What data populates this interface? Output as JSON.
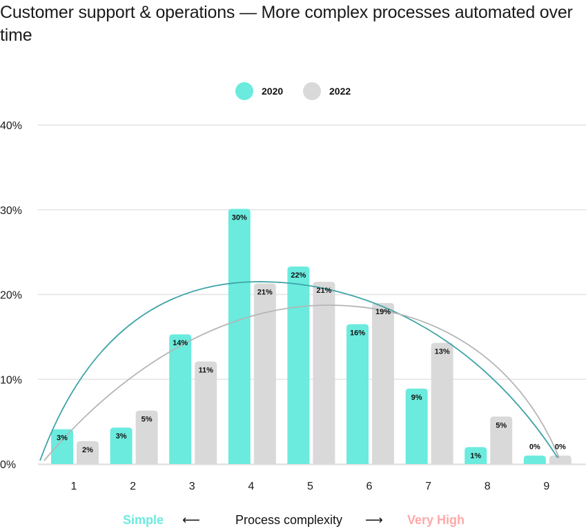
{
  "title": "Customer support & operations — More complex processes automated over time",
  "legend": [
    {
      "label": "2020",
      "color": "#6aebde"
    },
    {
      "label": "2022",
      "color": "#d9d9d9"
    }
  ],
  "footer": {
    "left_label": "Simple",
    "left_color": "#6aebde",
    "left_arrow": "⟵",
    "center_label": "Process complexity",
    "right_arrow": "⟶",
    "right_label": "Very High",
    "right_color": "#ffa8a8"
  },
  "chart_data": {
    "type": "bar",
    "title": "Customer support & operations — More complex processes automated over time",
    "xlabel": "Process complexity (Simple → Very High)",
    "ylabel": "",
    "categories": [
      "1",
      "2",
      "3",
      "4",
      "5",
      "6",
      "7",
      "8",
      "9"
    ],
    "series": [
      {
        "name": "2020",
        "color": "#6aebde",
        "values": [
          3,
          3,
          14,
          30,
          22,
          16,
          9,
          1,
          0
        ],
        "labels": [
          "3%",
          "3%",
          "14%",
          "30%",
          "22%",
          "16%",
          "9%",
          "1%",
          "0%"
        ],
        "trend_color": "#3ea3a6"
      },
      {
        "name": "2022",
        "color": "#d9d9d9",
        "values": [
          2,
          5,
          11,
          21,
          21,
          19,
          13,
          5,
          0
        ],
        "labels": [
          "2%",
          "5%",
          "11%",
          "21%",
          "21%",
          "19%",
          "13%",
          "5%",
          "0%"
        ],
        "trend_color": "#b5b5b5"
      }
    ],
    "bar_heights_pct": {
      "2020": [
        4.1,
        4.3,
        15.3,
        30.1,
        23.3,
        16.5,
        8.9,
        2.0,
        1.0
      ],
      "2022": [
        2.7,
        6.3,
        12.1,
        21.3,
        21.5,
        19.0,
        14.3,
        5.6,
        1.0
      ]
    },
    "yticks": [
      "0%",
      "10%",
      "20%",
      "30%",
      "40%"
    ],
    "ylim": [
      0,
      40
    ],
    "grid": true,
    "legend_position": "top-center",
    "trendlines": true
  }
}
